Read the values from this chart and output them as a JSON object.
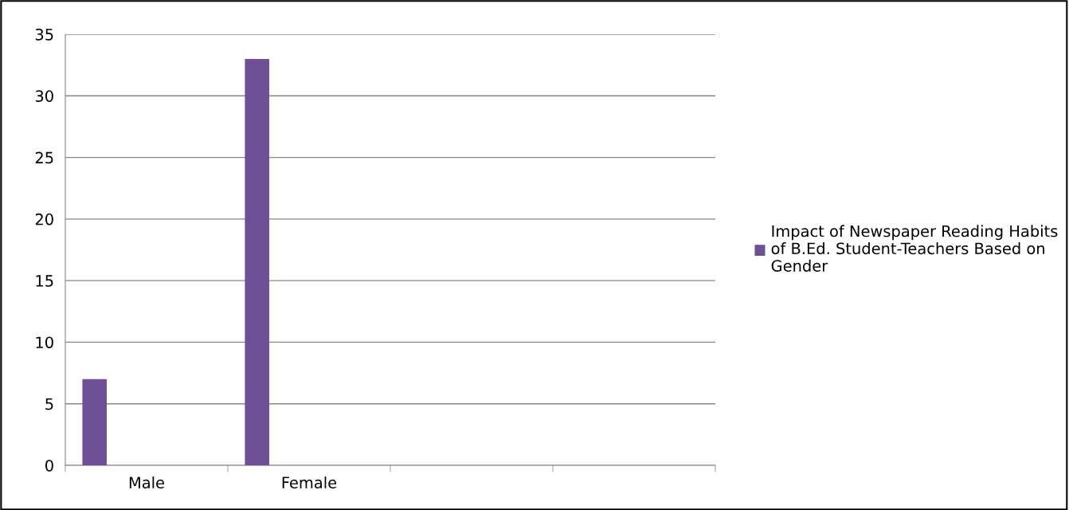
{
  "chart_data": {
    "type": "bar",
    "categories": [
      "Male",
      "Female",
      null,
      null
    ],
    "series": [
      {
        "name": "Impact of Newspaper Reading Habits of B.Ed. Student-Teachers Based on Gender",
        "color": "#6f4f96",
        "values": [
          7,
          33,
          null,
          null
        ]
      }
    ],
    "ylim": [
      0,
      35
    ],
    "yticks": [
      0,
      5,
      10,
      15,
      20,
      25,
      30,
      35
    ],
    "grid": "y",
    "legend": "right"
  }
}
